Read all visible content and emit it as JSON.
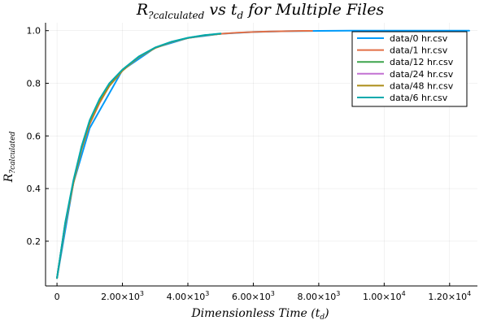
{
  "chart_data": {
    "type": "line",
    "title": {
      "base": "R",
      "sub": "?calculated",
      "rest": " vs t",
      "rest_sub": "d",
      "tail": " for Multiple Files"
    },
    "xlabel": {
      "text": "Dimensionless Time (t",
      "sub": "d",
      "close": ")"
    },
    "ylabel": {
      "base": "R",
      "sub": "?calculated"
    },
    "xlim": [
      -350,
      12850
    ],
    "ylim": [
      0.03,
      1.03
    ],
    "x_ticks": [
      {
        "value": 0,
        "mantissa": "0",
        "exp": ""
      },
      {
        "value": 2000,
        "mantissa": "2.00×10",
        "exp": "3"
      },
      {
        "value": 4000,
        "mantissa": "4.00×10",
        "exp": "3"
      },
      {
        "value": 6000,
        "mantissa": "6.00×10",
        "exp": "3"
      },
      {
        "value": 8000,
        "mantissa": "8.00×10",
        "exp": "3"
      },
      {
        "value": 10000,
        "mantissa": "1.00×10",
        "exp": "4"
      },
      {
        "value": 12000,
        "mantissa": "1.20×10",
        "exp": "4"
      }
    ],
    "y_ticks": [
      {
        "value": 0.2,
        "label": "0.2"
      },
      {
        "value": 0.4,
        "label": "0.4"
      },
      {
        "value": 0.6,
        "label": "0.6"
      },
      {
        "value": 0.8,
        "label": "0.8"
      },
      {
        "value": 1.0,
        "label": "1.0"
      }
    ],
    "grid": true,
    "legend_position": "top-right",
    "series": [
      {
        "name": "data/0 hr.csv",
        "color": "#009af9",
        "x": [
          0,
          500,
          1000,
          2000,
          3000,
          4000,
          5000,
          6000,
          7000,
          8000,
          9000,
          10000,
          11000,
          12000,
          12600
        ],
        "y": [
          0.06,
          0.42,
          0.63,
          0.85,
          0.935,
          0.972,
          0.988,
          0.995,
          0.998,
          0.999,
          1.0,
          1.0,
          1.0,
          1.0,
          1.0
        ]
      },
      {
        "name": "data/1 hr.csv",
        "color": "#e26f46",
        "x": [
          0,
          250,
          500,
          750,
          1000,
          1300,
          1600,
          2000,
          2500,
          3000,
          3500,
          4000,
          4500,
          5000,
          5500,
          6000,
          6500,
          7000,
          7500,
          7800
        ],
        "y": [
          0.06,
          0.26,
          0.42,
          0.55,
          0.645,
          0.725,
          0.79,
          0.848,
          0.9,
          0.935,
          0.957,
          0.972,
          0.982,
          0.988,
          0.992,
          0.995,
          0.997,
          0.998,
          0.999,
          0.999
        ]
      },
      {
        "name": "data/12 hr.csv",
        "color": "#3da44d",
        "x": [
          0,
          250,
          500,
          750,
          1000,
          1300,
          1600,
          2000,
          2500,
          3000,
          3500,
          4000,
          4500,
          5000
        ],
        "y": [
          0.06,
          0.265,
          0.425,
          0.555,
          0.655,
          0.735,
          0.795,
          0.85,
          0.9,
          0.934,
          0.957,
          0.972,
          0.982,
          0.988
        ]
      },
      {
        "name": "data/24 hr.csv",
        "color": "#c271d2",
        "x": [
          0,
          250,
          500,
          750,
          1000,
          1300,
          1600,
          2000,
          2500,
          3000,
          3500,
          4000,
          4500,
          5000
        ],
        "y": [
          0.06,
          0.265,
          0.42,
          0.55,
          0.65,
          0.73,
          0.79,
          0.848,
          0.9,
          0.934,
          0.957,
          0.972,
          0.982,
          0.988
        ]
      },
      {
        "name": "data/48 hr.csv",
        "color": "#ac8d18",
        "x": [
          0,
          250,
          500,
          750,
          1000,
          1300,
          1600,
          2000,
          2500,
          3000,
          3500,
          4000,
          4500,
          5000
        ],
        "y": [
          0.06,
          0.265,
          0.42,
          0.55,
          0.65,
          0.73,
          0.79,
          0.848,
          0.9,
          0.934,
          0.957,
          0.972,
          0.982,
          0.988
        ]
      },
      {
        "name": "data/6 hr.csv",
        "color": "#00a9ad",
        "x": [
          0,
          250,
          500,
          750,
          1000,
          1300,
          1600,
          2000,
          2500,
          3000,
          3500,
          4000,
          4500,
          5000
        ],
        "y": [
          0.06,
          0.27,
          0.43,
          0.56,
          0.66,
          0.74,
          0.8,
          0.852,
          0.902,
          0.936,
          0.958,
          0.973,
          0.983,
          0.989
        ]
      }
    ]
  }
}
